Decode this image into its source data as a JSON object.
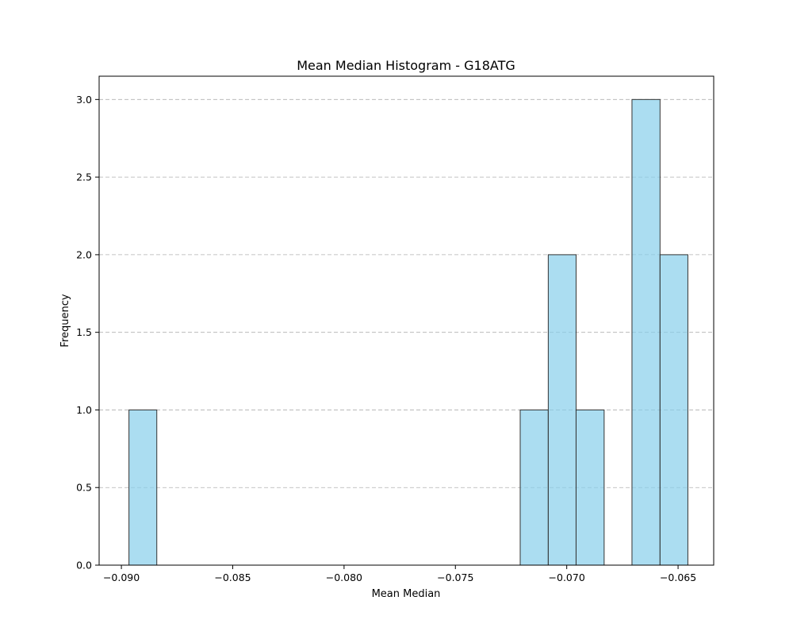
{
  "chart_data": {
    "type": "bar",
    "title": "Mean Median Histogram - G18ATG",
    "xlabel": "Mean Median",
    "ylabel": "Frequency",
    "xlim": [
      -0.091,
      -0.0634
    ],
    "ylim": [
      0,
      3.15
    ],
    "xticks": [
      -0.09,
      -0.085,
      -0.08,
      -0.075,
      -0.07,
      -0.065
    ],
    "xtick_labels": [
      "−0.090",
      "−0.085",
      "−0.080",
      "−0.075",
      "−0.070",
      "−0.065"
    ],
    "yticks": [
      0.0,
      0.5,
      1.0,
      1.5,
      2.0,
      2.5,
      3.0
    ],
    "ytick_labels": [
      "0.0",
      "0.5",
      "1.0",
      "1.5",
      "2.0",
      "2.5",
      "3.0"
    ],
    "grid": "y-dashed",
    "bar_color": "#87CEEB",
    "bar_edge_color": "#333333",
    "bins": [
      {
        "x0": -0.08966,
        "x1": -0.08841,
        "count": 1
      },
      {
        "x0": -0.07209,
        "x1": -0.07083,
        "count": 1
      },
      {
        "x0": -0.07083,
        "x1": -0.06958,
        "count": 2
      },
      {
        "x0": -0.06958,
        "x1": -0.06832,
        "count": 1
      },
      {
        "x0": -0.06707,
        "x1": -0.06581,
        "count": 3
      },
      {
        "x0": -0.06581,
        "x1": -0.06456,
        "count": 2
      }
    ]
  }
}
